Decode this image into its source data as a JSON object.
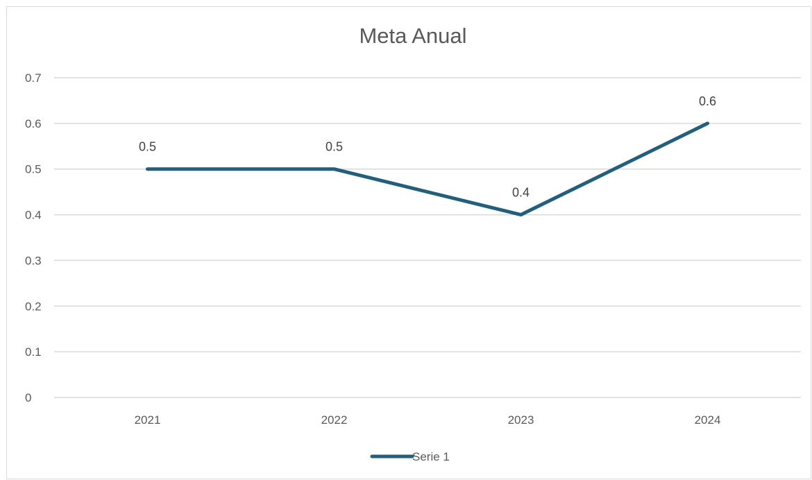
{
  "chart_data": {
    "type": "line",
    "title": "Meta Anual",
    "categories": [
      "2021",
      "2022",
      "2023",
      "2024"
    ],
    "series": [
      {
        "name": "Serie 1",
        "values": [
          0.5,
          0.5,
          0.4,
          0.6
        ],
        "color": "#1f5f7f"
      }
    ],
    "data_labels": [
      "0.5",
      "0.5",
      "0.4",
      "0.6"
    ],
    "ylim": [
      0,
      0.7
    ],
    "yticks": [
      "0",
      "0.1",
      "0.2",
      "0.3",
      "0.4",
      "0.5",
      "0.6",
      "0.7"
    ],
    "grid": true,
    "legend": "bottom",
    "gridline_color": "#d9d9d9"
  }
}
